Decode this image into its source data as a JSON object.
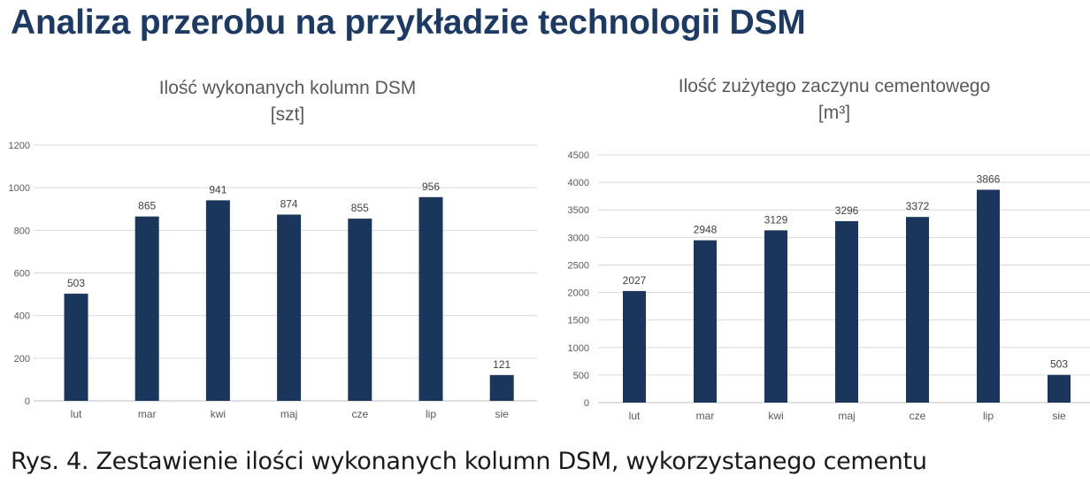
{
  "heading": "Analiza przerobu na przykładzie technologii DSM",
  "caption": "Rys. 4. Zestawienie ilości wykonanych kolumn DSM, wykorzystanego cementu",
  "bar_color": "#1b365d",
  "chart_data": [
    {
      "type": "bar",
      "title": "Ilość wykonanych kolumn DSM",
      "subtitle": "[szt]",
      "categories": [
        "lut",
        "mar",
        "kwi",
        "maj",
        "cze",
        "lip",
        "sie"
      ],
      "values": [
        503,
        865,
        941,
        874,
        855,
        956,
        121
      ],
      "ylim": [
        0,
        1200
      ],
      "yticks": [
        0,
        200,
        400,
        600,
        800,
        1000,
        1200
      ],
      "grid": true,
      "xlabel": "",
      "ylabel": ""
    },
    {
      "type": "bar",
      "title": "Ilość zużytego zaczynu cementowego",
      "subtitle": "[m³]",
      "categories": [
        "lut",
        "mar",
        "kwi",
        "maj",
        "cze",
        "lip",
        "sie"
      ],
      "values": [
        2027,
        2948,
        3129,
        3296,
        3372,
        3866,
        503
      ],
      "ylim": [
        0,
        4500
      ],
      "yticks": [
        0,
        500,
        1000,
        1500,
        2000,
        2500,
        3000,
        3500,
        4000,
        4500
      ],
      "grid": true,
      "xlabel": "",
      "ylabel": ""
    }
  ]
}
